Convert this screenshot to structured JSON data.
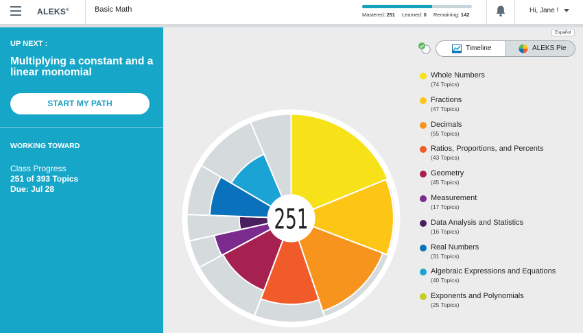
{
  "header": {
    "logo": "ALEKS",
    "logo_mark": "®",
    "course": "Basic Math",
    "mastered_label": "Mastered:",
    "mastered": "251",
    "learned_label": "Learned:",
    "learned": "0",
    "remaining_label": "Remaining:",
    "remaining": "142",
    "mastered_fraction": 0.639,
    "greeting": "Hi, Jane !"
  },
  "sidebar": {
    "up_next": "UP NEXT :",
    "topic": "Multiplying a constant and a linear monomial",
    "start_button": "START MY PATH",
    "working_toward": "WORKING TOWARD",
    "class_progress": "Class Progress",
    "topics_progress": "251 of 393 Topics",
    "due": "Due: Jul 28"
  },
  "view": {
    "language": "Español",
    "timeline_label": "Timeline",
    "pie_label": "ALEKS Pie",
    "active": "pie"
  },
  "pie": {
    "center_value": "251",
    "remaining_color": "#d5dadd"
  },
  "legend": [
    {
      "name": "Whole Numbers",
      "count": "(74 Topics)",
      "color": "#f7e21a",
      "total": 74,
      "mastered": 74
    },
    {
      "name": "Fractions",
      "count": "(47 Topics)",
      "color": "#fdc617",
      "total": 47,
      "mastered": 45
    },
    {
      "name": "Decimals",
      "count": "(55 Topics)",
      "color": "#f7941d",
      "total": 55,
      "mastered": 47
    },
    {
      "name": "Ratios, Proportions, and Percents",
      "count": "(43 Topics)",
      "color": "#f15a29",
      "total": 43,
      "mastered": 26
    },
    {
      "name": "Geometry",
      "count": "(45 Topics)",
      "color": "#a6214f",
      "total": 45,
      "mastered": 20
    },
    {
      "name": "Measurement",
      "count": "(17 Topics)",
      "color": "#7b2a8e",
      "total": 17,
      "mastered": 8
    },
    {
      "name": "Data Analysis and Statistics",
      "count": "(16 Topics)",
      "color": "#4a1f5e",
      "total": 16,
      "mastered": 2
    },
    {
      "name": "Real Numbers",
      "count": "(31 Topics)",
      "color": "#0a72bc",
      "total": 31,
      "mastered": 16
    },
    {
      "name": "Algebraic Expressions and Equations",
      "count": "(40 Topics)",
      "color": "#1aa3d4",
      "total": 40,
      "mastered": 13
    },
    {
      "name": "Exponents and Polynomials",
      "count": "(25 Topics)",
      "color": "#c4cf25",
      "total": 25,
      "mastered": 0
    }
  ]
}
